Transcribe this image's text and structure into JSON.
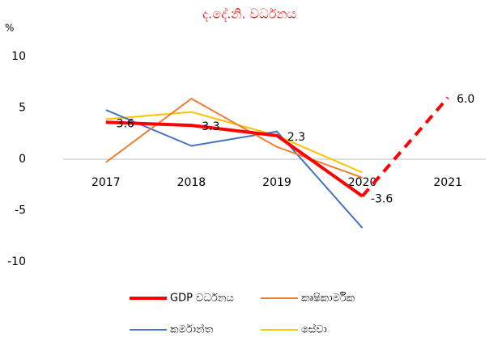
{
  "chart_data": {
    "type": "line",
    "title": "ද.දේ.නි. වර්ධනය",
    "y_label": "%",
    "categories": [
      "2017",
      "2018",
      "2019",
      "2020",
      "2021"
    ],
    "series": [
      {
        "name": "GDP වර්ධනය",
        "color": "#ff0000",
        "values": [
          3.6,
          3.3,
          2.3,
          -3.6,
          6.0
        ],
        "value_labels": [
          "3.6",
          "3.3",
          "2.3",
          "-3.6",
          "6.0"
        ],
        "dashed_from": 3,
        "width": 4
      },
      {
        "name": "කෘෂිකාර්මික",
        "color": "#ed7d31",
        "values": [
          -0.3,
          5.9,
          1.2,
          -1.8,
          null
        ],
        "width": 2
      },
      {
        "name": "කර්මාන්ත",
        "color": "#4472c4",
        "values": [
          4.8,
          1.3,
          2.7,
          -6.7,
          null
        ],
        "width": 2
      },
      {
        "name": "සේවා",
        "color": "#ffc000",
        "values": [
          3.9,
          4.6,
          2.3,
          -1.3,
          null
        ],
        "width": 2
      }
    ],
    "ylim": [
      -10,
      10
    ],
    "yticks": [
      -10,
      -5,
      0,
      5,
      10
    ],
    "grid": false
  }
}
